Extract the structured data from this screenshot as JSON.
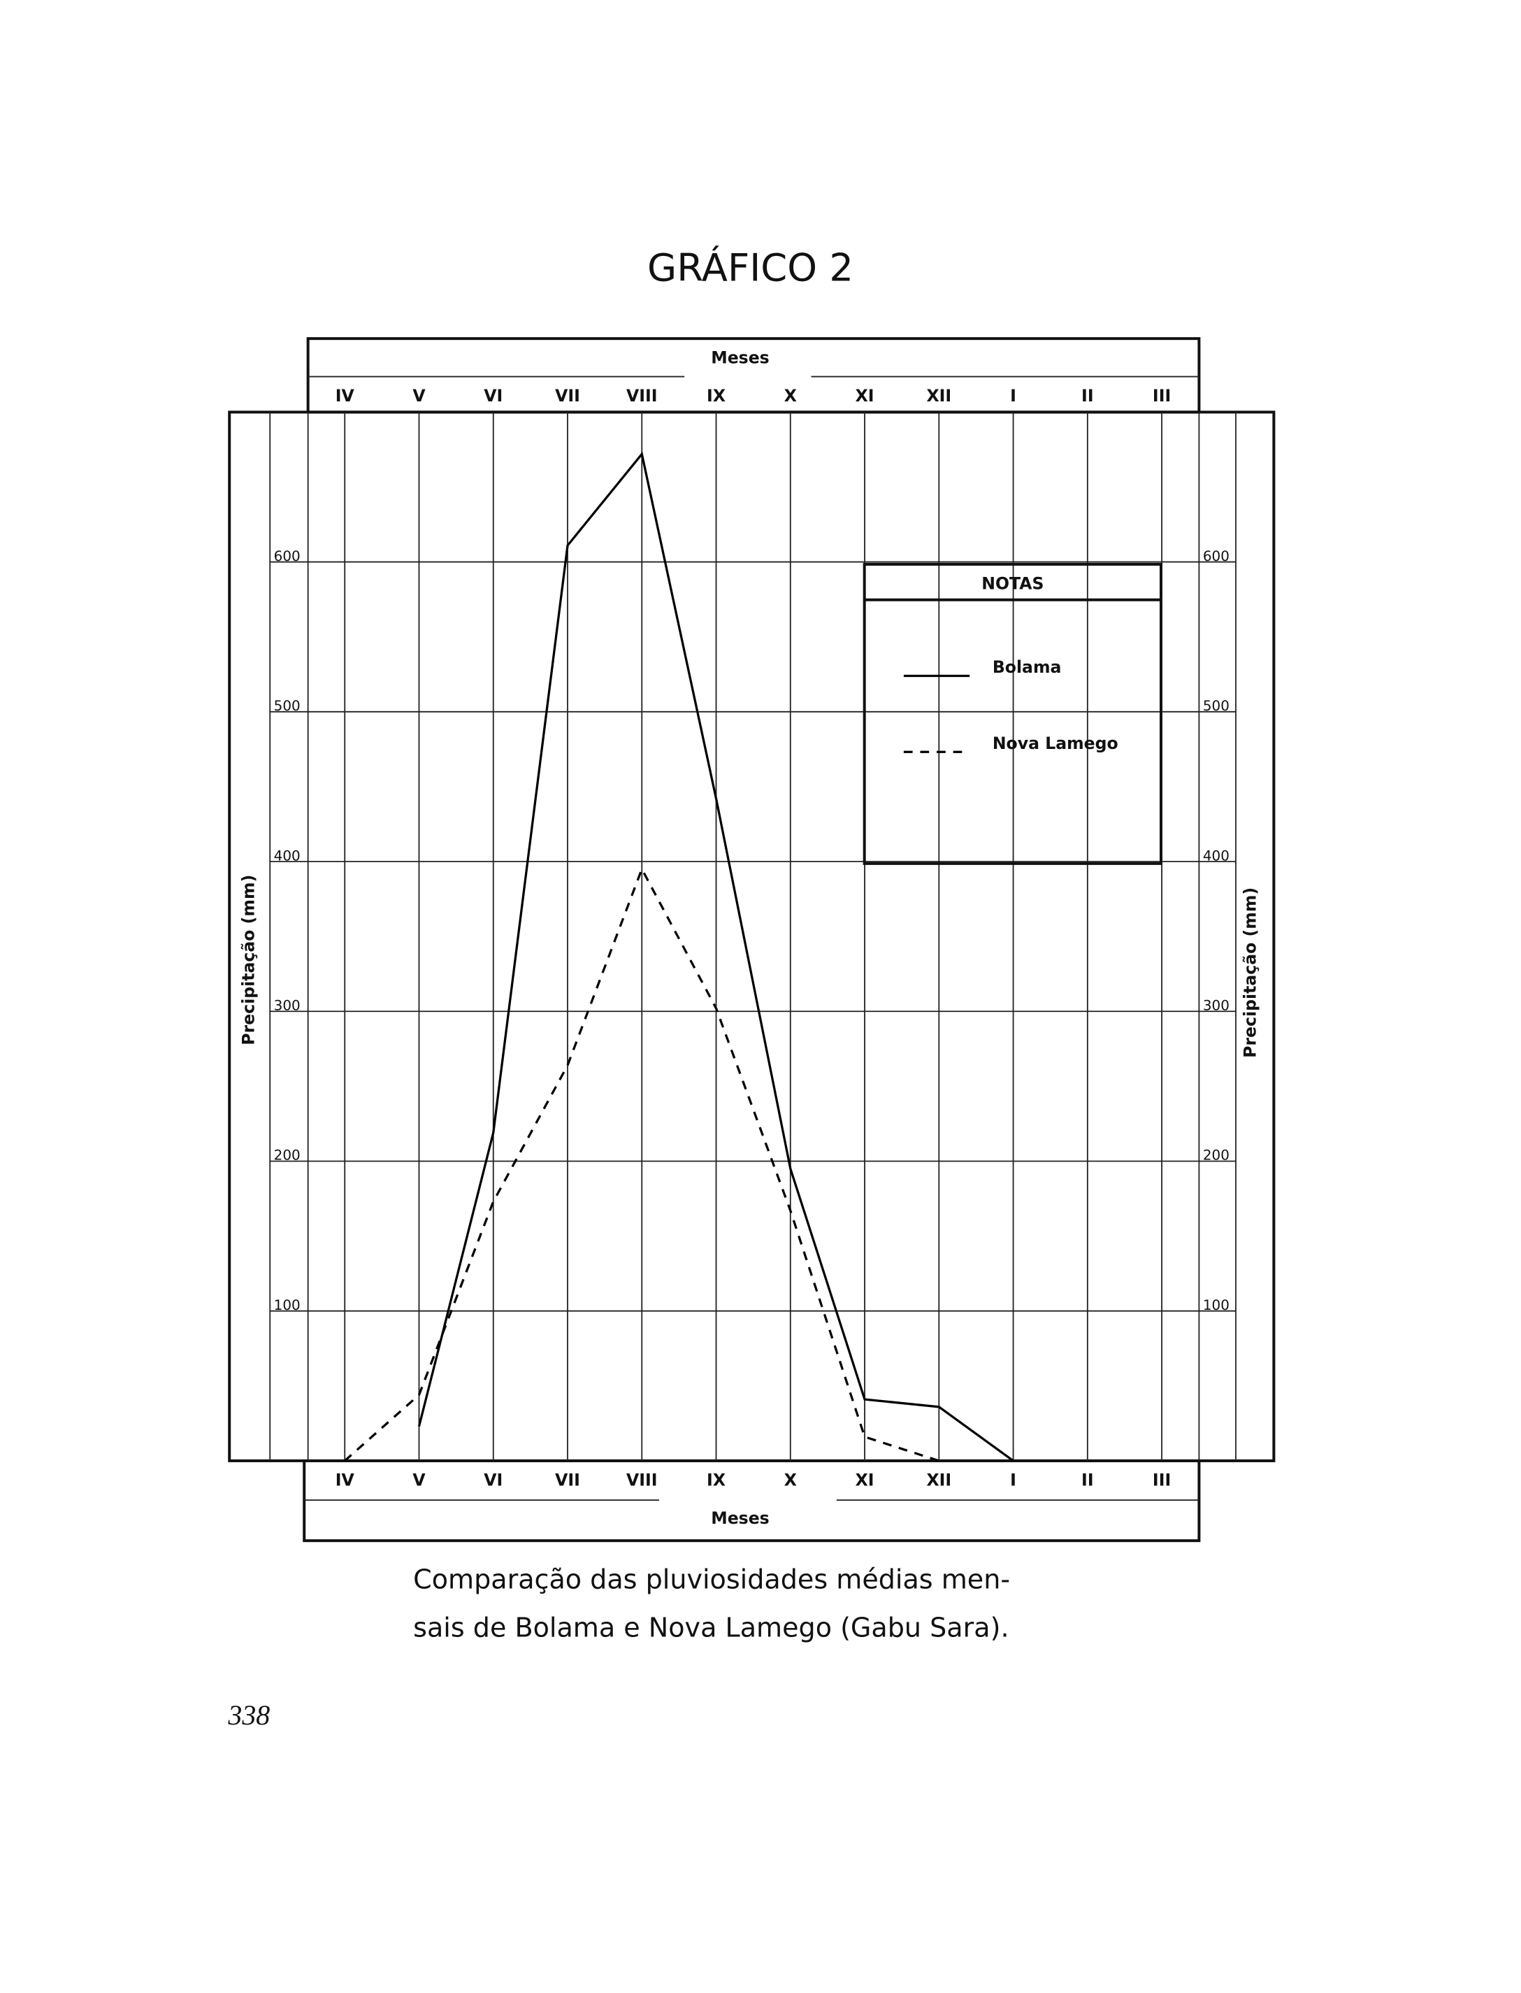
{
  "chart_data": {
    "type": "line",
    "title": "GRÁFICO 2",
    "x_label": "Meses",
    "y_label": "Precipitação (mm)",
    "categories": [
      "IV",
      "V",
      "VI",
      "VII",
      "VIII",
      "IX",
      "X",
      "XI",
      "XII",
      "I",
      "II",
      "III"
    ],
    "series": [
      {
        "name": "Bolama",
        "color": "#000000",
        "dash": "solid",
        "values": [
          null,
          23,
          219,
          611,
          672,
          442,
          195,
          41,
          36,
          0,
          null,
          null
        ]
      },
      {
        "name": "Nova Lamego",
        "color": "#000000",
        "dash": "dashed",
        "values": [
          0,
          44,
          173,
          264,
          395,
          302,
          167,
          16,
          0,
          null,
          null,
          null
        ]
      }
    ],
    "ylim": [
      0,
      700
    ],
    "yticks": [
      100,
      200,
      300,
      400,
      500,
      600
    ],
    "grid": true,
    "legend_title": "NOTAS",
    "legend": "upper right",
    "caption": [
      "Comparação das pluviosidades médias men-",
      "sais de Bolama e Nova Lamego (Gabu Sara)."
    ],
    "page_number": "338"
  }
}
